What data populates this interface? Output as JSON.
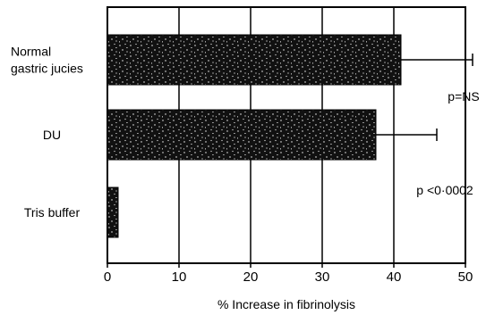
{
  "chart_data": {
    "type": "bar",
    "orientation": "horizontal",
    "categories": [
      [
        "Normal",
        "gastric jucies"
      ],
      [
        "DU"
      ],
      [
        "Tris buffer"
      ]
    ],
    "values": [
      41,
      37.5,
      1.5
    ],
    "error_bars": [
      10,
      8.5,
      null
    ],
    "xlabel": "% Increase in fibrinolysis",
    "xlim": [
      0,
      50
    ],
    "xticks": [
      0,
      10,
      20,
      30,
      40,
      50
    ],
    "grid": "vertical",
    "annotations": [
      "p=NS",
      "p <0·0002"
    ],
    "bar_fill": "stippled black"
  }
}
